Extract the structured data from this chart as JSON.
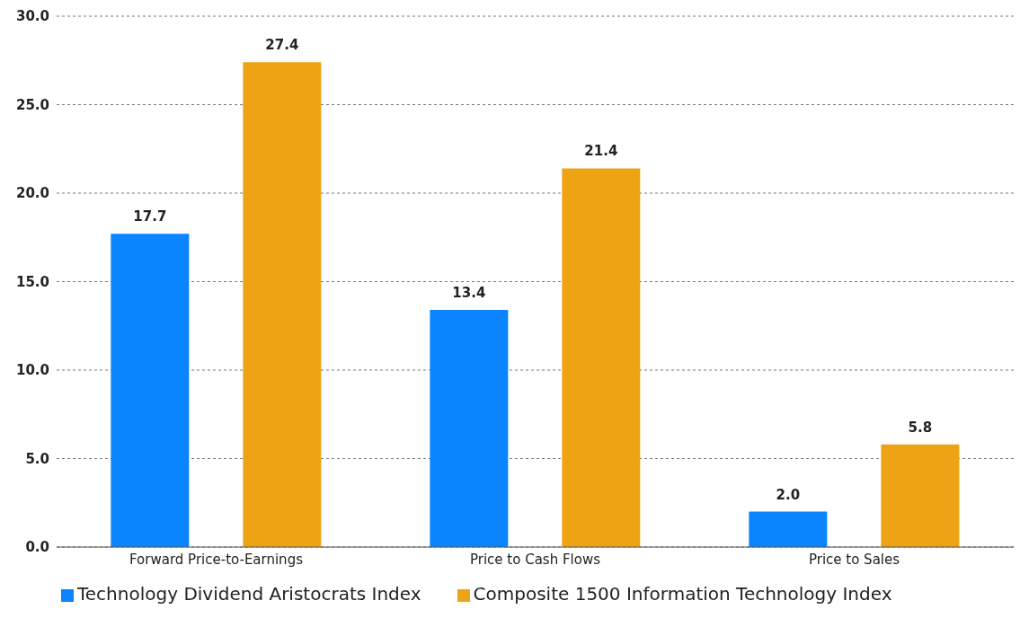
{
  "chart_data": {
    "type": "bar",
    "categories": [
      "Forward Price-to-Earnings",
      "Price to Cash Flows",
      "Price to Sales"
    ],
    "series": [
      {
        "name": "Technology Dividend Aristocrats Index",
        "color": "#0a84ff",
        "values": [
          17.7,
          13.4,
          2.0
        ],
        "value_labels": [
          "17.7",
          "13.4",
          "2.0"
        ]
      },
      {
        "name": "Composite 1500 Information Technology Index",
        "color": "#eea315",
        "values": [
          27.4,
          21.4,
          5.8
        ],
        "value_labels": [
          "27.4",
          "21.4",
          "5.8"
        ]
      }
    ],
    "ylim": [
      0,
      30
    ],
    "yticks": [
      {
        "value": 0,
        "label": "0.0"
      },
      {
        "value": 5,
        "label": "5.0"
      },
      {
        "value": 10,
        "label": "10.0"
      },
      {
        "value": 15,
        "label": "15.0"
      },
      {
        "value": 20,
        "label": "20.0"
      },
      {
        "value": 25,
        "label": "25.0"
      },
      {
        "value": 30,
        "label": "30.0"
      }
    ],
    "grid": "y",
    "legend": "bottom"
  }
}
